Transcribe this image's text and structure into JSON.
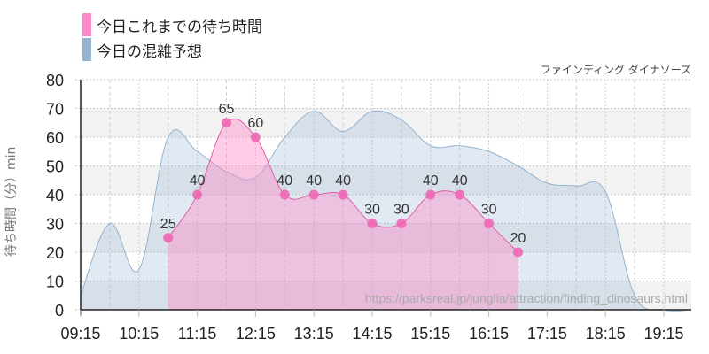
{
  "legend": {
    "actual_label": "今日これまでの待ち時間",
    "forecast_label": "今日の混雑予想",
    "actual_color": "#ff88c8",
    "forecast_color": "#93b4d0"
  },
  "attraction_name": "ファインディング ダイナソーズ",
  "y_axis_label": "待ち時間（分）min",
  "source_url": "https://parksreal.jp/junglia/attraction/finding_dinosaurs.html",
  "chart_data": {
    "type": "area",
    "title": "ファインディング ダイナソーズ",
    "xlabel": "",
    "ylabel": "待ち時間（分）min",
    "ylim": [
      0,
      80
    ],
    "yticks": [
      0,
      10,
      20,
      30,
      40,
      50,
      60,
      70,
      80
    ],
    "xticks": [
      "09:15",
      "10:15",
      "11:15",
      "12:15",
      "13:15",
      "14:15",
      "15:15",
      "16:15",
      "17:15",
      "18:15",
      "19:15"
    ],
    "grid": true,
    "legend_position": "top-left",
    "series": [
      {
        "name": "今日これまでの待ち時間",
        "type": "area-line-with-markers",
        "x": [
          "10:45",
          "11:15",
          "11:45",
          "12:15",
          "12:45",
          "13:15",
          "13:45",
          "14:15",
          "14:45",
          "15:15",
          "15:45",
          "16:15",
          "16:45"
        ],
        "values": [
          25,
          40,
          65,
          60,
          40,
          40,
          40,
          30,
          30,
          40,
          40,
          30,
          20
        ]
      },
      {
        "name": "今日の混雑予想",
        "type": "area",
        "x": [
          "09:15",
          "09:45",
          "10:15",
          "10:45",
          "11:15",
          "11:45",
          "12:15",
          "12:45",
          "13:15",
          "13:45",
          "14:15",
          "14:45",
          "15:15",
          "15:45",
          "16:15",
          "16:45",
          "17:15",
          "17:45",
          "18:15",
          "18:45",
          "19:15",
          "19:45"
        ],
        "values": [
          5,
          30,
          14,
          60,
          55,
          48,
          46,
          60,
          69,
          62,
          69,
          66,
          57,
          57,
          55,
          50,
          44,
          43,
          41,
          5,
          0,
          0
        ]
      }
    ]
  }
}
